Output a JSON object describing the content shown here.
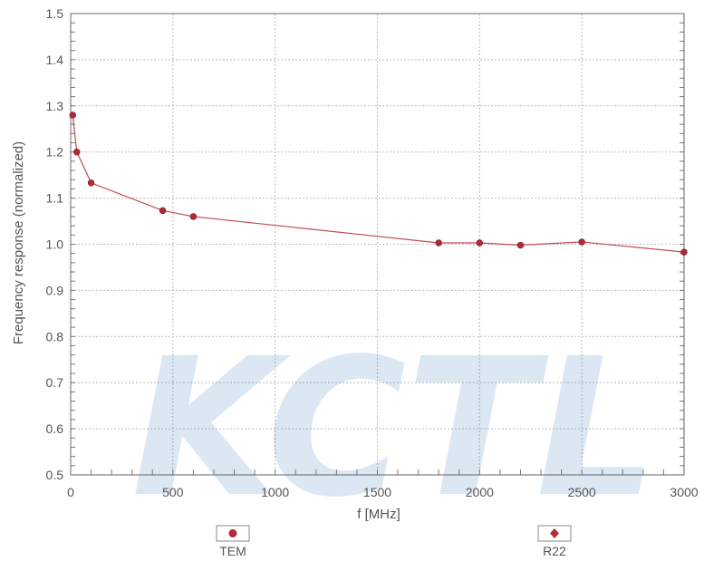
{
  "chart_data": {
    "type": "line",
    "xlabel": "f [MHz]",
    "ylabel": "Frequency response (normalized)",
    "xlim": [
      0,
      3000
    ],
    "ylim": [
      0.5,
      1.5
    ],
    "x_ticks": [
      "0",
      "500",
      "1000",
      "1500",
      "2000",
      "2500",
      "3000"
    ],
    "y_ticks": [
      "0.5",
      "0.6",
      "0.7",
      "0.8",
      "0.9",
      "1.0",
      "1.1",
      "1.2",
      "1.3",
      "1.4",
      "1.5"
    ],
    "grid": true,
    "series": [
      {
        "name": "TEM",
        "color": "#b02a37",
        "marker": "circle",
        "x": [
          10,
          30,
          100,
          450,
          600,
          1800,
          2000,
          2200,
          2500,
          3000
        ],
        "y": [
          1.28,
          1.2,
          1.133,
          1.073,
          1.06,
          1.003,
          1.003,
          0.998,
          1.005,
          0.983
        ]
      }
    ],
    "legend": [
      {
        "label": "TEM",
        "marker": "circle",
        "position": "bottom-left"
      },
      {
        "label": "R22",
        "marker": "diamond",
        "position": "bottom-right"
      }
    ]
  },
  "watermark": "KCTL"
}
